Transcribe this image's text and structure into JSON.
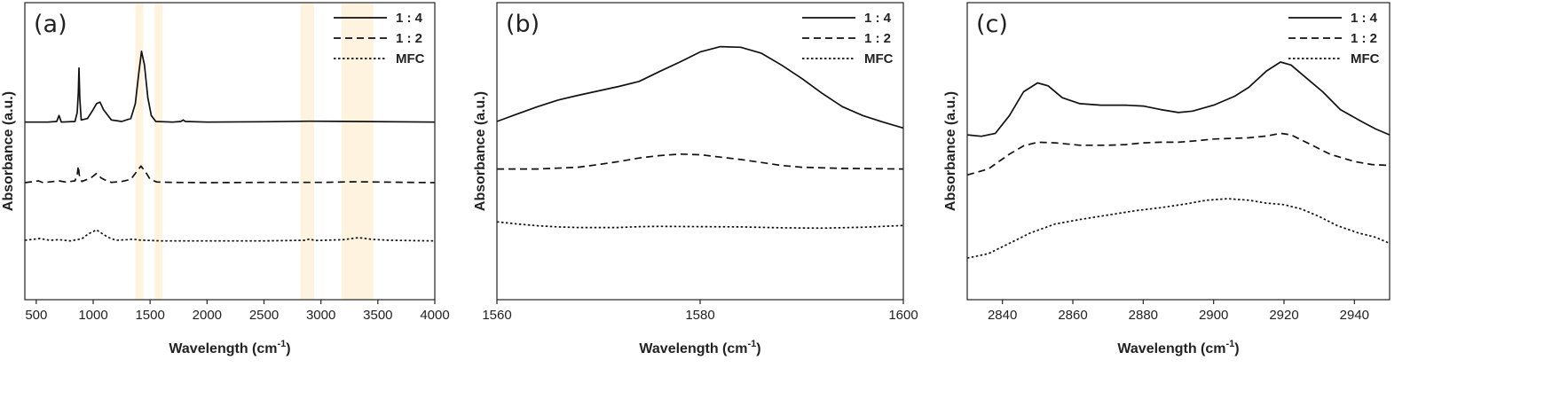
{
  "chart_data": [
    {
      "type": "line",
      "panel_label": "(a)",
      "xlabel": "Wavelength (cm",
      "xlabel_sup": "-1",
      "xlabel_end": ")",
      "ylabel": "Absorbance (a.u.)",
      "xlim": [
        400,
        4000
      ],
      "ylim": [
        0,
        1
      ],
      "xticks": [
        500,
        1000,
        1500,
        2000,
        2500,
        3000,
        3500,
        4000
      ],
      "xtick_labels": [
        "500",
        "1000",
        "1500",
        "2000",
        "2500",
        "3000",
        "3500",
        "4000"
      ],
      "legend_position": "top-right",
      "highlight_bands": [
        [
          1370,
          1440
        ],
        [
          1540,
          1610
        ],
        [
          2820,
          2940
        ],
        [
          3180,
          3460
        ]
      ],
      "highlight_color": "#fdf3de",
      "series": [
        {
          "name": "1 : 4",
          "style": "solid",
          "points": [
            [
              400,
              0.598
            ],
            [
              600,
              0.598
            ],
            [
              680,
              0.6
            ],
            [
              700,
              0.62
            ],
            [
              720,
              0.598
            ],
            [
              840,
              0.6
            ],
            [
              860,
              0.63
            ],
            [
              870,
              0.7
            ],
            [
              875,
              0.78
            ],
            [
              882,
              0.68
            ],
            [
              895,
              0.605
            ],
            [
              950,
              0.61
            ],
            [
              1000,
              0.64
            ],
            [
              1030,
              0.66
            ],
            [
              1060,
              0.665
            ],
            [
              1090,
              0.64
            ],
            [
              1120,
              0.625
            ],
            [
              1160,
              0.605
            ],
            [
              1250,
              0.6
            ],
            [
              1330,
              0.61
            ],
            [
              1370,
              0.66
            ],
            [
              1400,
              0.76
            ],
            [
              1425,
              0.836
            ],
            [
              1450,
              0.79
            ],
            [
              1480,
              0.68
            ],
            [
              1510,
              0.62
            ],
            [
              1550,
              0.6
            ],
            [
              1700,
              0.598
            ],
            [
              1770,
              0.6
            ],
            [
              1790,
              0.605
            ],
            [
              1810,
              0.6
            ],
            [
              2000,
              0.598
            ],
            [
              2500,
              0.599
            ],
            [
              2900,
              0.601
            ],
            [
              3300,
              0.6
            ],
            [
              4000,
              0.598
            ]
          ]
        },
        {
          "name": "1 : 2",
          "style": "dashed",
          "points": [
            [
              400,
              0.394
            ],
            [
              520,
              0.4
            ],
            [
              560,
              0.394
            ],
            [
              700,
              0.4
            ],
            [
              760,
              0.396
            ],
            [
              840,
              0.4
            ],
            [
              860,
              0.42
            ],
            [
              870,
              0.45
            ],
            [
              878,
              0.42
            ],
            [
              900,
              0.398
            ],
            [
              980,
              0.41
            ],
            [
              1030,
              0.425
            ],
            [
              1070,
              0.41
            ],
            [
              1120,
              0.4
            ],
            [
              1160,
              0.395
            ],
            [
              1250,
              0.398
            ],
            [
              1330,
              0.405
            ],
            [
              1380,
              0.43
            ],
            [
              1420,
              0.45
            ],
            [
              1460,
              0.43
            ],
            [
              1500,
              0.405
            ],
            [
              1560,
              0.396
            ],
            [
              1700,
              0.395
            ],
            [
              2000,
              0.394
            ],
            [
              2500,
              0.395
            ],
            [
              3000,
              0.395
            ],
            [
              3300,
              0.397
            ],
            [
              4000,
              0.394
            ]
          ]
        },
        {
          "name": "MFC",
          "style": "dotted",
          "points": [
            [
              400,
              0.2
            ],
            [
              530,
              0.206
            ],
            [
              620,
              0.2
            ],
            [
              700,
              0.202
            ],
            [
              800,
              0.198
            ],
            [
              900,
              0.205
            ],
            [
              960,
              0.222
            ],
            [
              1030,
              0.235
            ],
            [
              1080,
              0.222
            ],
            [
              1130,
              0.21
            ],
            [
              1200,
              0.2
            ],
            [
              1300,
              0.202
            ],
            [
              1350,
              0.204
            ],
            [
              1400,
              0.201
            ],
            [
              1600,
              0.198
            ],
            [
              2000,
              0.198
            ],
            [
              2500,
              0.198
            ],
            [
              2860,
              0.2
            ],
            [
              2900,
              0.204
            ],
            [
              2950,
              0.199
            ],
            [
              3200,
              0.202
            ],
            [
              3330,
              0.209
            ],
            [
              3450,
              0.203
            ],
            [
              3600,
              0.2
            ],
            [
              4000,
              0.198
            ]
          ]
        }
      ]
    },
    {
      "type": "line",
      "panel_label": "(b)",
      "xlabel": "Wavelength (cm",
      "xlabel_sup": "-1",
      "xlabel_end": ")",
      "ylabel": "Absorbance (a.u.)",
      "xlim": [
        1560,
        1600
      ],
      "ylim": [
        0,
        1
      ],
      "xticks": [
        1560,
        1580,
        1600
      ],
      "xtick_labels": [
        "1560",
        "1580",
        "1600"
      ],
      "legend_position": "top-right",
      "series": [
        {
          "name": "1 : 4",
          "style": "solid",
          "points": [
            [
              1560,
              0.6
            ],
            [
              1562,
              0.625
            ],
            [
              1564,
              0.65
            ],
            [
              1566,
              0.672
            ],
            [
              1568,
              0.688
            ],
            [
              1570,
              0.703
            ],
            [
              1572,
              0.718
            ],
            [
              1574,
              0.735
            ],
            [
              1576,
              0.768
            ],
            [
              1578,
              0.8
            ],
            [
              1580,
              0.834
            ],
            [
              1582,
              0.852
            ],
            [
              1584,
              0.85
            ],
            [
              1586,
              0.83
            ],
            [
              1588,
              0.79
            ],
            [
              1590,
              0.745
            ],
            [
              1592,
              0.695
            ],
            [
              1594,
              0.65
            ],
            [
              1596,
              0.62
            ],
            [
              1598,
              0.598
            ],
            [
              1600,
              0.578
            ]
          ]
        },
        {
          "name": "1 : 2",
          "style": "dashed",
          "points": [
            [
              1560,
              0.44
            ],
            [
              1564,
              0.44
            ],
            [
              1568,
              0.446
            ],
            [
              1570,
              0.455
            ],
            [
              1572,
              0.465
            ],
            [
              1574,
              0.477
            ],
            [
              1576,
              0.485
            ],
            [
              1578,
              0.49
            ],
            [
              1580,
              0.488
            ],
            [
              1582,
              0.48
            ],
            [
              1584,
              0.472
            ],
            [
              1586,
              0.462
            ],
            [
              1588,
              0.452
            ],
            [
              1590,
              0.446
            ],
            [
              1594,
              0.442
            ],
            [
              1600,
              0.44
            ]
          ]
        },
        {
          "name": "MFC",
          "style": "dotted",
          "points": [
            [
              1560,
              0.262
            ],
            [
              1562,
              0.255
            ],
            [
              1564,
              0.249
            ],
            [
              1566,
              0.245
            ],
            [
              1568,
              0.243
            ],
            [
              1572,
              0.243
            ],
            [
              1574,
              0.246
            ],
            [
              1576,
              0.247
            ],
            [
              1580,
              0.246
            ],
            [
              1584,
              0.245
            ],
            [
              1588,
              0.242
            ],
            [
              1592,
              0.241
            ],
            [
              1596,
              0.244
            ],
            [
              1600,
              0.25
            ]
          ]
        }
      ]
    },
    {
      "type": "line",
      "panel_label": "(c)",
      "xlabel": "Wavelength (cm",
      "xlabel_sup": "-1",
      "xlabel_end": ")",
      "ylabel": "Absorbance (a.u.)",
      "xlim": [
        2830,
        2950
      ],
      "ylim": [
        0,
        1
      ],
      "xticks": [
        2840,
        2860,
        2880,
        2900,
        2920,
        2940
      ],
      "xtick_labels": [
        "2840",
        "2860",
        "2880",
        "2900",
        "2920",
        "2940"
      ],
      "legend_position": "top-right",
      "series": [
        {
          "name": "1 : 4",
          "style": "solid",
          "points": [
            [
              2830,
              0.555
            ],
            [
              2834,
              0.55
            ],
            [
              2838,
              0.56
            ],
            [
              2842,
              0.62
            ],
            [
              2846,
              0.7
            ],
            [
              2850,
              0.73
            ],
            [
              2853,
              0.72
            ],
            [
              2857,
              0.68
            ],
            [
              2862,
              0.66
            ],
            [
              2868,
              0.655
            ],
            [
              2875,
              0.655
            ],
            [
              2880,
              0.652
            ],
            [
              2885,
              0.64
            ],
            [
              2890,
              0.63
            ],
            [
              2894,
              0.635
            ],
            [
              2900,
              0.655
            ],
            [
              2906,
              0.685
            ],
            [
              2910,
              0.715
            ],
            [
              2915,
              0.77
            ],
            [
              2919,
              0.8
            ],
            [
              2922,
              0.79
            ],
            [
              2926,
              0.75
            ],
            [
              2931,
              0.7
            ],
            [
              2936,
              0.64
            ],
            [
              2942,
              0.6
            ],
            [
              2946,
              0.575
            ],
            [
              2950,
              0.555
            ]
          ]
        },
        {
          "name": "1 : 2",
          "style": "dashed",
          "points": [
            [
              2830,
              0.42
            ],
            [
              2836,
              0.44
            ],
            [
              2842,
              0.49
            ],
            [
              2846,
              0.518
            ],
            [
              2850,
              0.53
            ],
            [
              2855,
              0.528
            ],
            [
              2862,
              0.52
            ],
            [
              2870,
              0.52
            ],
            [
              2875,
              0.522
            ],
            [
              2880,
              0.528
            ],
            [
              2885,
              0.53
            ],
            [
              2890,
              0.53
            ],
            [
              2895,
              0.535
            ],
            [
              2900,
              0.541
            ],
            [
              2905,
              0.543
            ],
            [
              2910,
              0.545
            ],
            [
              2915,
              0.551
            ],
            [
              2919,
              0.56
            ],
            [
              2922,
              0.555
            ],
            [
              2928,
              0.52
            ],
            [
              2933,
              0.49
            ],
            [
              2940,
              0.465
            ],
            [
              2945,
              0.455
            ],
            [
              2950,
              0.452
            ]
          ]
        },
        {
          "name": "MFC",
          "style": "dotted",
          "points": [
            [
              2830,
              0.14
            ],
            [
              2836,
              0.155
            ],
            [
              2842,
              0.19
            ],
            [
              2848,
              0.225
            ],
            [
              2855,
              0.255
            ],
            [
              2862,
              0.27
            ],
            [
              2870,
              0.285
            ],
            [
              2878,
              0.3
            ],
            [
              2885,
              0.31
            ],
            [
              2892,
              0.322
            ],
            [
              2898,
              0.335
            ],
            [
              2904,
              0.34
            ],
            [
              2910,
              0.335
            ],
            [
              2915,
              0.325
            ],
            [
              2920,
              0.32
            ],
            [
              2925,
              0.305
            ],
            [
              2930,
              0.28
            ],
            [
              2935,
              0.25
            ],
            [
              2941,
              0.225
            ],
            [
              2946,
              0.21
            ],
            [
              2950,
              0.19
            ]
          ]
        }
      ]
    }
  ]
}
